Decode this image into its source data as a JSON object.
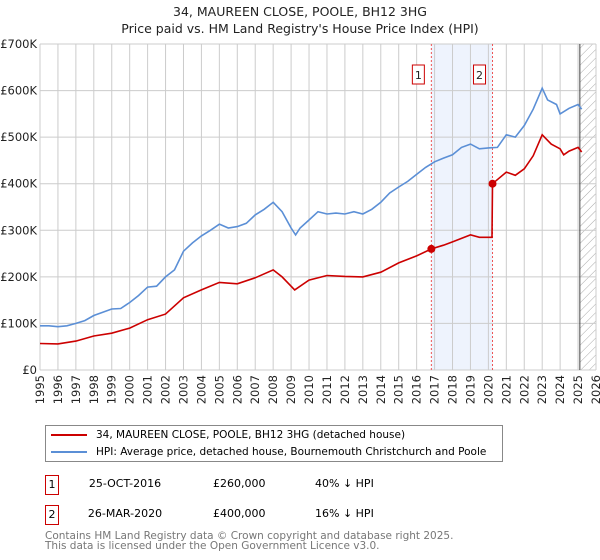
{
  "chart_data": {
    "type": "line",
    "title": "34, MAUREEN CLOSE, POOLE, BH12 3HG",
    "subtitle": "Price paid vs. HM Land Registry's House Price Index (HPI)",
    "xlim": [
      1995,
      2026
    ],
    "ylim": [
      0,
      700000
    ],
    "y_ticks": [
      {
        "v": 0,
        "label": "£0"
      },
      {
        "v": 100000,
        "label": "£100K"
      },
      {
        "v": 200000,
        "label": "£200K"
      },
      {
        "v": 300000,
        "label": "£300K"
      },
      {
        "v": 400000,
        "label": "£400K"
      },
      {
        "v": 500000,
        "label": "£500K"
      },
      {
        "v": 600000,
        "label": "£600K"
      },
      {
        "v": 700000,
        "label": "£700K"
      }
    ],
    "x_ticks": [
      "1995",
      "1996",
      "1997",
      "1998",
      "1999",
      "2000",
      "2001",
      "2002",
      "2003",
      "2004",
      "2005",
      "2006",
      "2007",
      "2008",
      "2009",
      "2010",
      "2011",
      "2012",
      "2013",
      "2014",
      "2015",
      "2016",
      "2017",
      "2018",
      "2019",
      "2020",
      "2021",
      "2022",
      "2023",
      "2024",
      "2025",
      "2026"
    ],
    "grid": true,
    "series": [
      {
        "name": "34, MAUREEN CLOSE, POOLE, BH12 3HG (detached house)",
        "color": "#cc0000",
        "x": [
          1995,
          1996,
          1997,
          1998,
          1999,
          2000,
          2001,
          2002,
          2003,
          2004,
          2005,
          2006,
          2007,
          2008,
          2008.5,
          2009.2,
          2010,
          2011,
          2012,
          2013,
          2014,
          2015,
          2016,
          2016.82,
          2017.5,
          2018,
          2019,
          2019.5,
          2020.2,
          2020.23,
          2021,
          2021.5,
          2022,
          2022.5,
          2023,
          2023.5,
          2024,
          2024.2,
          2024.5,
          2025,
          2025.2
        ],
        "y": [
          57000,
          56000,
          62000,
          73000,
          79000,
          90000,
          108000,
          120000,
          155000,
          172000,
          188000,
          185000,
          198000,
          215000,
          200000,
          172000,
          193000,
          203000,
          201000,
          200000,
          210000,
          230000,
          245000,
          260000,
          268000,
          275000,
          290000,
          285000,
          285000,
          400000,
          425000,
          418000,
          432000,
          460000,
          505000,
          485000,
          475000,
          462000,
          470000,
          478000,
          468000
        ]
      },
      {
        "name": "HPI: Average price, detached house, Bournemouth Christchurch and Poole",
        "color": "#5b8fd6",
        "x": [
          1995,
          1995.5,
          1996,
          1996.5,
          1997,
          1997.5,
          1998,
          1998.5,
          1999,
          1999.5,
          2000,
          2000.5,
          2001,
          2001.5,
          2002,
          2002.5,
          2003,
          2003.5,
          2004,
          2004.5,
          2005,
          2005.5,
          2006,
          2006.5,
          2007,
          2007.5,
          2008,
          2008.5,
          2009,
          2009.25,
          2009.5,
          2010,
          2010.5,
          2011,
          2011.5,
          2012,
          2012.5,
          2013,
          2013.5,
          2014,
          2014.5,
          2015,
          2015.5,
          2016,
          2016.5,
          2017,
          2017.5,
          2018,
          2018.5,
          2019,
          2019.5,
          2020,
          2020.5,
          2021,
          2021.5,
          2022,
          2022.5,
          2023,
          2023.3,
          2023.8,
          2024,
          2024.5,
          2025,
          2025.2
        ],
        "y": [
          95000,
          95000,
          93000,
          95000,
          100000,
          106000,
          117000,
          124000,
          131000,
          132000,
          145000,
          160000,
          178000,
          180000,
          200000,
          215000,
          255000,
          273000,
          288000,
          300000,
          313000,
          305000,
          308000,
          315000,
          333000,
          345000,
          360000,
          340000,
          305000,
          290000,
          305000,
          322000,
          340000,
          335000,
          337000,
          335000,
          340000,
          335000,
          345000,
          360000,
          380000,
          393000,
          405000,
          420000,
          435000,
          447000,
          455000,
          462000,
          478000,
          485000,
          475000,
          477000,
          478000,
          505000,
          500000,
          525000,
          560000,
          605000,
          580000,
          570000,
          550000,
          562000,
          570000,
          560000
        ]
      }
    ],
    "sales": [
      {
        "label": "1",
        "x": 2016.82,
        "price": 260000,
        "date": "25-OCT-2016",
        "price_text": "£260,000",
        "hpi_text": "40% ↓ HPI"
      },
      {
        "label": "2",
        "x": 2020.23,
        "price": 400000,
        "date": "26-MAR-2020",
        "price_text": "£400,000",
        "hpi_text": "16% ↓ HPI"
      }
    ],
    "forecast_start": 2025.1
  },
  "footer": {
    "line1": "Contains HM Land Registry data © Crown copyright and database right 2025.",
    "line2": "This data is licensed under the Open Government Licence v3.0."
  }
}
